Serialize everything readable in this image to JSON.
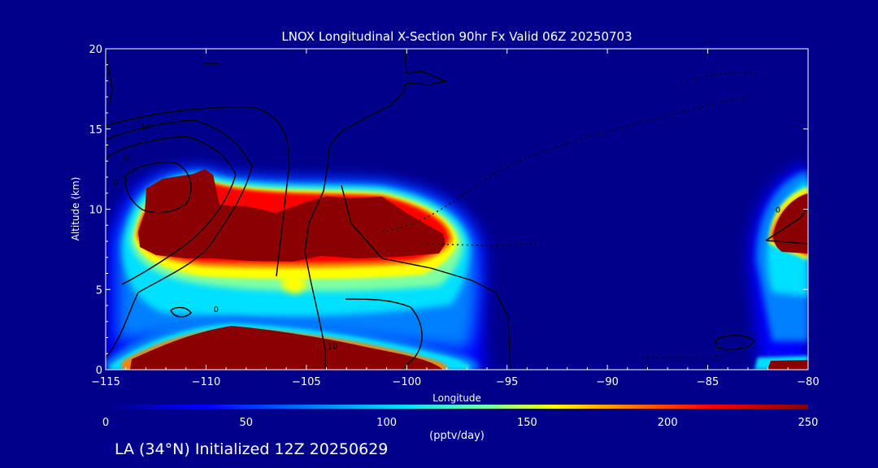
{
  "chart_data": {
    "type": "heatmap",
    "title": "LNOX Longitudinal X-Section 90hr  Fx Valid 06Z 20250703",
    "xlabel": "Longitude",
    "ylabel": "Altitude (km)",
    "xlim": [
      -115,
      -80
    ],
    "ylim": [
      0,
      20
    ],
    "x_ticks": [
      -115,
      -110,
      -105,
      -100,
      -95,
      -90,
      -85,
      -80
    ],
    "x_tick_labels": [
      "−115",
      "−110",
      "−105",
      "−100",
      "−95",
      "−90",
      "−85",
      "−80"
    ],
    "y_ticks": [
      0,
      5,
      10,
      15,
      20
    ],
    "y_tick_labels": [
      "0",
      "5",
      "10",
      "15",
      "20"
    ],
    "colorbar": {
      "label": "(pptv/day)",
      "range": [
        0,
        250
      ],
      "ticks": [
        0,
        50,
        100,
        150,
        200,
        250
      ],
      "tick_labels": [
        "0",
        "50",
        "100",
        "150",
        "200",
        "250"
      ],
      "colors": [
        "#00008b",
        "#0000ff",
        "#0080ff",
        "#00e0ff",
        "#80ffa0",
        "#ffff00",
        "#ff8000",
        "#ff0000",
        "#8b0000"
      ]
    },
    "features": [
      {
        "name": "upper-tropospheric maximum",
        "lon": [
          -113.5,
          -98.5
        ],
        "alt_km": [
          6.5,
          12.5
        ],
        "peak": 250
      },
      {
        "name": "boundary-layer maximum",
        "lon": [
          -113.5,
          -97
        ],
        "alt_km": [
          0,
          2.8
        ],
        "peak": 250
      },
      {
        "name": "eastern edge maximum",
        "lon": [
          -82,
          -80
        ],
        "alt_km": [
          6.5,
          11
        ],
        "peak": 250
      },
      {
        "name": "eastern surface maximum",
        "lon": [
          -82,
          -80
        ],
        "alt_km": [
          0.3,
          1
        ],
        "peak": 250
      }
    ],
    "contour_labels": [
      "10",
      "0",
      "0",
      "0",
      "10",
      "0"
    ]
  },
  "footer": "LA (34°N) Initialized 12Z 20250629",
  "colors": {
    "background": "#00008b",
    "text": "#ffffff",
    "contour": "#000000"
  }
}
